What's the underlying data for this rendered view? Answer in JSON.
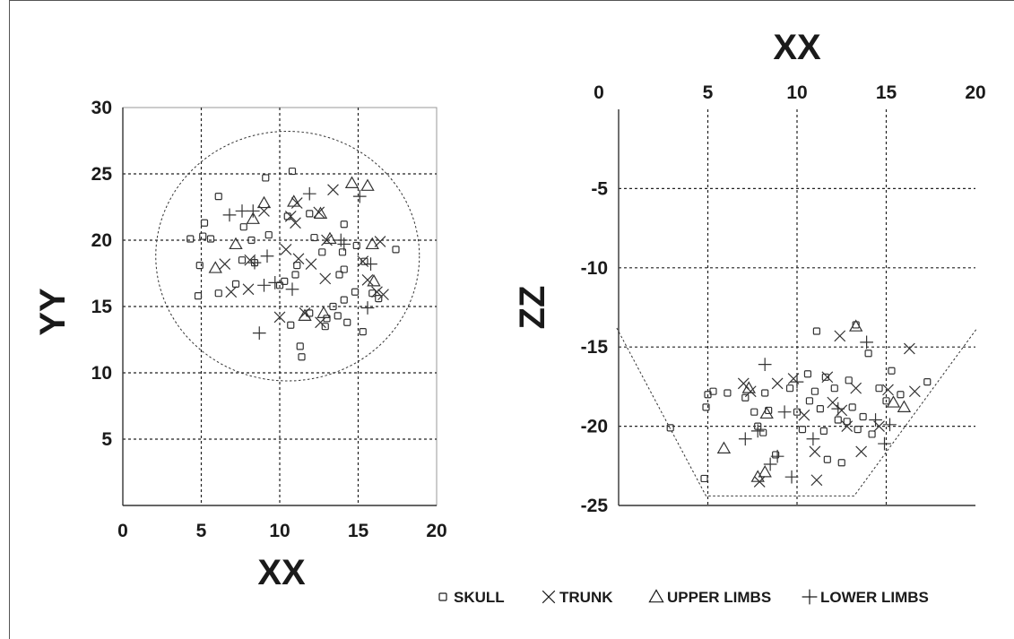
{
  "chart_data": [
    {
      "type": "scatter",
      "xlabel": "XX",
      "ylabel": "YY",
      "xlim": [
        0,
        20
      ],
      "ylim": [
        0,
        30
      ],
      "x_ticks": [
        "0",
        "5",
        "10",
        "15",
        "20"
      ],
      "y_ticks": [
        "5",
        "10",
        "15",
        "20",
        "25",
        "30"
      ],
      "grid": true,
      "outline_circle": {
        "cx": 10.5,
        "cy": 18.8,
        "r": 8.4
      },
      "series": [
        {
          "name": "SKULL",
          "marker": "square",
          "points": [
            [
              4.3,
              20.1
            ],
            [
              5.2,
              21.3
            ],
            [
              5.1,
              20.3
            ],
            [
              5.6,
              20.1
            ],
            [
              4.9,
              18.1
            ],
            [
              4.8,
              15.8
            ],
            [
              6.1,
              23.3
            ],
            [
              6.1,
              16.0
            ],
            [
              7.2,
              16.7
            ],
            [
              7.6,
              18.5
            ],
            [
              7.7,
              21.0
            ],
            [
              8.2,
              20.0
            ],
            [
              8.4,
              18.3
            ],
            [
              9.1,
              24.7
            ],
            [
              9.3,
              20.4
            ],
            [
              10.0,
              16.6
            ],
            [
              10.3,
              16.9
            ],
            [
              10.5,
              21.8
            ],
            [
              10.8,
              25.2
            ],
            [
              10.7,
              13.6
            ],
            [
              11.0,
              17.4
            ],
            [
              11.1,
              18.1
            ],
            [
              11.3,
              12.0
            ],
            [
              11.4,
              11.2
            ],
            [
              11.9,
              22.0
            ],
            [
              11.9,
              14.5
            ],
            [
              12.2,
              20.2
            ],
            [
              12.7,
              19.1
            ],
            [
              12.9,
              13.5
            ],
            [
              13.0,
              14.1
            ],
            [
              13.4,
              15.0
            ],
            [
              13.7,
              14.3
            ],
            [
              13.8,
              17.4
            ],
            [
              14.0,
              19.1
            ],
            [
              14.1,
              21.2
            ],
            [
              14.1,
              17.8
            ],
            [
              14.1,
              15.5
            ],
            [
              14.3,
              13.8
            ],
            [
              14.8,
              16.1
            ],
            [
              14.9,
              19.6
            ],
            [
              15.3,
              13.1
            ],
            [
              15.4,
              18.4
            ],
            [
              15.9,
              16.0
            ],
            [
              16.3,
              15.6
            ],
            [
              17.4,
              19.3
            ]
          ]
        },
        {
          "name": "TRUNK",
          "marker": "x",
          "points": [
            [
              6.5,
              18.2
            ],
            [
              6.9,
              16.1
            ],
            [
              8.0,
              16.3
            ],
            [
              8.1,
              18.5
            ],
            [
              9.0,
              22.2
            ],
            [
              10.0,
              14.2
            ],
            [
              10.4,
              19.3
            ],
            [
              10.7,
              21.8
            ],
            [
              11.0,
              21.3
            ],
            [
              11.1,
              22.8
            ],
            [
              11.2,
              18.6
            ],
            [
              11.6,
              14.5
            ],
            [
              12.0,
              18.2
            ],
            [
              12.5,
              22.1
            ],
            [
              12.6,
              13.8
            ],
            [
              12.9,
              17.1
            ],
            [
              13.0,
              20.0
            ],
            [
              13.4,
              23.8
            ],
            [
              15.3,
              18.4
            ],
            [
              15.6,
              17.0
            ],
            [
              16.4,
              19.9
            ],
            [
              16.2,
              16.1
            ],
            [
              16.6,
              15.9
            ]
          ]
        },
        {
          "name": "UPPER LIMBS",
          "marker": "triangle",
          "points": [
            [
              5.9,
              17.9
            ],
            [
              7.2,
              19.7
            ],
            [
              8.3,
              21.6
            ],
            [
              9.0,
              22.8
            ],
            [
              10.9,
              22.9
            ],
            [
              11.6,
              14.3
            ],
            [
              12.6,
              22.0
            ],
            [
              12.8,
              14.5
            ],
            [
              13.2,
              20.1
            ],
            [
              14.6,
              24.3
            ],
            [
              15.6,
              24.1
            ],
            [
              15.9,
              19.7
            ],
            [
              16.0,
              16.9
            ]
          ]
        },
        {
          "name": "LOWER LIMBS",
          "marker": "plus",
          "points": [
            [
              6.8,
              21.9
            ],
            [
              7.6,
              22.2
            ],
            [
              8.3,
              22.2
            ],
            [
              8.4,
              18.3
            ],
            [
              8.7,
              13.0
            ],
            [
              9.0,
              16.6
            ],
            [
              9.2,
              18.8
            ],
            [
              9.7,
              16.8
            ],
            [
              10.8,
              16.3
            ],
            [
              11.9,
              23.5
            ],
            [
              13.9,
              20.0
            ],
            [
              14.1,
              19.7
            ],
            [
              15.1,
              23.3
            ],
            [
              15.6,
              14.9
            ],
            [
              15.8,
              18.2
            ]
          ]
        }
      ]
    },
    {
      "type": "scatter",
      "xlabel": "XX",
      "ylabel": "ZZ",
      "xlim": [
        0,
        20
      ],
      "ylim": [
        -25,
        0
      ],
      "x_ticks": [
        "0",
        "5",
        "10",
        "15",
        "20"
      ],
      "y_ticks": [
        "-5",
        "-10",
        "-15",
        "-20",
        "-25"
      ],
      "x_axis_position": "top",
      "grid": true,
      "outline_trapezoid": [
        [
          1.0,
          -13.8
        ],
        [
          20.0,
          -13.8
        ],
        [
          13.2,
          -24.4
        ],
        [
          4.9,
          -24.4
        ]
      ],
      "series": [
        {
          "name": "SKULL",
          "marker": "square",
          "points": [
            [
              2.9,
              -20.1
            ],
            [
              4.8,
              -23.3
            ],
            [
              4.9,
              -18.8
            ],
            [
              5.0,
              -18.0
            ],
            [
              5.3,
              -17.8
            ],
            [
              6.1,
              -17.9
            ],
            [
              7.1,
              -18.2
            ],
            [
              7.6,
              -19.1
            ],
            [
              7.8,
              -20.0
            ],
            [
              8.1,
              -20.4
            ],
            [
              8.2,
              -17.9
            ],
            [
              8.4,
              -19.0
            ],
            [
              8.8,
              -21.8
            ],
            [
              9.6,
              -17.6
            ],
            [
              10.0,
              -19.1
            ],
            [
              10.3,
              -20.2
            ],
            [
              10.6,
              -16.7
            ],
            [
              10.7,
              -18.4
            ],
            [
              11.0,
              -17.8
            ],
            [
              11.1,
              -14.0
            ],
            [
              11.3,
              -18.9
            ],
            [
              11.6,
              -16.9
            ],
            [
              11.7,
              -22.1
            ],
            [
              12.1,
              -17.6
            ],
            [
              12.3,
              -19.6
            ],
            [
              12.5,
              -22.3
            ],
            [
              12.8,
              -19.7
            ],
            [
              12.9,
              -17.1
            ],
            [
              13.3,
              -13.6
            ],
            [
              13.4,
              -20.2
            ],
            [
              13.7,
              -19.4
            ],
            [
              14.0,
              -15.4
            ],
            [
              14.2,
              -20.5
            ],
            [
              14.6,
              -17.6
            ],
            [
              15.0,
              -18.4
            ],
            [
              15.3,
              -16.5
            ],
            [
              15.8,
              -18.0
            ],
            [
              17.3,
              -17.2
            ],
            [
              11.5,
              -20.3
            ],
            [
              13.1,
              -18.8
            ]
          ]
        },
        {
          "name": "TRUNK",
          "marker": "x",
          "points": [
            [
              7.0,
              -17.3
            ],
            [
              7.4,
              -17.8
            ],
            [
              7.9,
              -23.5
            ],
            [
              8.9,
              -17.3
            ],
            [
              9.8,
              -17.0
            ],
            [
              10.4,
              -19.3
            ],
            [
              11.0,
              -21.6
            ],
            [
              11.1,
              -23.4
            ],
            [
              11.7,
              -16.9
            ],
            [
              12.0,
              -18.5
            ],
            [
              12.4,
              -14.3
            ],
            [
              12.5,
              -19.0
            ],
            [
              12.8,
              -20.0
            ],
            [
              13.3,
              -17.6
            ],
            [
              13.6,
              -21.6
            ],
            [
              14.6,
              -20.0
            ],
            [
              15.1,
              -17.7
            ],
            [
              16.3,
              -15.1
            ],
            [
              16.6,
              -17.8
            ]
          ]
        },
        {
          "name": "UPPER LIMBS",
          "marker": "triangle",
          "points": [
            [
              5.9,
              -21.4
            ],
            [
              7.3,
              -17.6
            ],
            [
              7.8,
              -23.2
            ],
            [
              8.2,
              -22.9
            ],
            [
              8.3,
              -19.2
            ],
            [
              13.3,
              -13.7
            ],
            [
              15.4,
              -18.5
            ],
            [
              16.0,
              -18.8
            ]
          ]
        },
        {
          "name": "LOWER LIMBS",
          "marker": "plus",
          "points": [
            [
              7.1,
              -20.8
            ],
            [
              7.8,
              -20.3
            ],
            [
              8.2,
              -16.1
            ],
            [
              8.5,
              -22.4
            ],
            [
              8.9,
              -21.9
            ],
            [
              9.3,
              -19.1
            ],
            [
              9.7,
              -23.2
            ],
            [
              10.0,
              -17.2
            ],
            [
              10.9,
              -20.8
            ],
            [
              12.3,
              -18.9
            ],
            [
              13.9,
              -14.7
            ],
            [
              14.4,
              -19.6
            ],
            [
              14.9,
              -21.1
            ],
            [
              15.2,
              -19.9
            ]
          ]
        }
      ]
    }
  ],
  "legend": {
    "items": [
      {
        "marker": "square",
        "label": "SKULL"
      },
      {
        "marker": "x",
        "label": "TRUNK"
      },
      {
        "marker": "triangle",
        "label": "UPPER LIMBS"
      },
      {
        "marker": "plus",
        "label": "LOWER LIMBS"
      }
    ]
  },
  "colors": {
    "ink": "#333333",
    "grid": "#222222",
    "axis_box": "#999999"
  }
}
